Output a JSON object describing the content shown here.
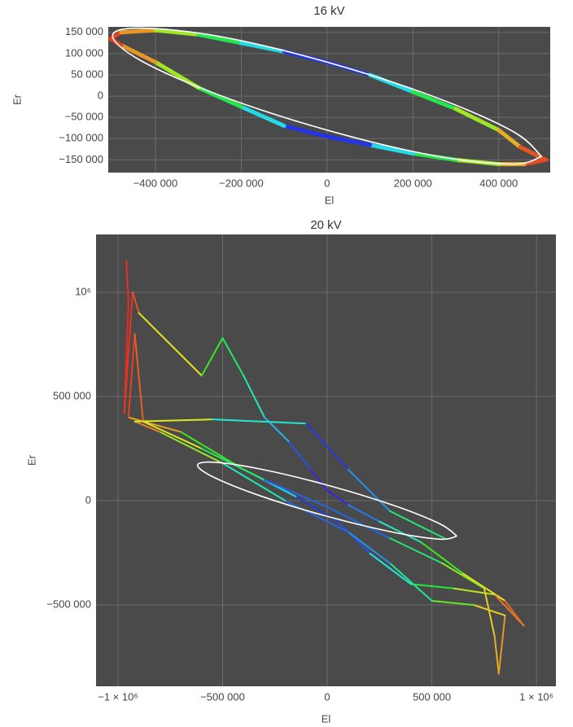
{
  "chart_data": [
    {
      "type": "line",
      "title": "16 kV",
      "x_label": "El",
      "y_label": "Er",
      "xlim": [
        -510000,
        520000
      ],
      "ylim": [
        -180000,
        163000
      ],
      "grid": true,
      "xticks": [
        {
          "value": -400000,
          "label": "−400 000"
        },
        {
          "value": -200000,
          "label": "−200 000"
        },
        0,
        {
          "value": 200000,
          "label": "200 000"
        },
        {
          "value": 400000,
          "label": "400 000"
        }
      ],
      "yticks": [
        {
          "value": 150000,
          "label": "150 000"
        },
        {
          "value": 100000,
          "label": "100 000"
        },
        {
          "value": 50000,
          "label": "50 000"
        },
        0,
        {
          "value": -50000,
          "label": "−50 000"
        },
        {
          "value": -100000,
          "label": "−100 000"
        },
        {
          "value": -150000,
          "label": "−150 000"
        }
      ],
      "series": [
        {
          "color": "rainbow",
          "x": [
            -505000,
            -480000,
            -400000,
            -300000,
            -200000,
            -100000,
            0,
            100000,
            200000,
            300000,
            400000,
            450000,
            510000,
            460000,
            400000,
            300000,
            200000,
            100000,
            0,
            -100000,
            -200000,
            -300000,
            -400000,
            -480000,
            -505000
          ],
          "values": [
            135000,
            150000,
            155000,
            145000,
            125000,
            105000,
            80000,
            50000,
            10000,
            -30000,
            -80000,
            -120000,
            -150000,
            -160000,
            -160000,
            -150000,
            -135000,
            -115000,
            -95000,
            -70000,
            -25000,
            20000,
            80000,
            120000,
            135000
          ]
        },
        {
          "color": "#ffffff",
          "x": [
            500000,
            433000,
            250000,
            0,
            -250000,
            -433000,
            -500000,
            -433000,
            -250000,
            0,
            250000,
            433000,
            500000
          ],
          "values": [
            -142000,
            -83000,
            -1700,
            80000,
            140300,
            160000,
            142000,
            83000,
            1700,
            -80000,
            -140300,
            -160000,
            -142000
          ]
        }
      ]
    },
    {
      "type": "line",
      "title": "20 kV",
      "x_label": "El",
      "y_label": "Er",
      "xlim": [
        -1105000,
        1093000
      ],
      "ylim": [
        -890000,
        1277000
      ],
      "grid": true,
      "xticks": [
        {
          "value": -1000000,
          "label": "−1 × 10⁶"
        },
        {
          "value": -500000,
          "label": "−500 000"
        },
        0,
        {
          "value": 500000,
          "label": "500 000"
        },
        {
          "value": 1000000,
          "label": "1 × 10⁶"
        }
      ],
      "yticks": [
        {
          "value": 1000000,
          "label": "10⁶"
        },
        {
          "value": 500000,
          "label": "500 000"
        },
        0,
        {
          "value": -500000,
          "label": "−500 000"
        }
      ],
      "series": [
        {
          "color": "rainbow",
          "x": [
            -960000,
            -950000,
            -970000,
            -930000,
            -900000,
            -600000,
            -500000,
            -400000,
            -300000,
            -180000,
            -80000,
            0,
            100000,
            250000,
            450000,
            650000,
            850000,
            940000,
            800000,
            600000,
            400000,
            200000,
            50000,
            -150000,
            -400000,
            -700000,
            -950000,
            -920000,
            -880000,
            -600000,
            -300000,
            0,
            300000,
            550000,
            750000,
            800000,
            820000,
            850000,
            700000,
            500000,
            300000,
            100000,
            -200000,
            -500000,
            -800000,
            -920000,
            -550000,
            -100000,
            100000,
            300000,
            560000
          ],
          "values": [
            1150000,
            950000,
            420000,
            1000000,
            900000,
            600000,
            780000,
            600000,
            400000,
            280000,
            150000,
            50000,
            -20000,
            -100000,
            -200000,
            -350000,
            -480000,
            -600000,
            -450000,
            -420000,
            -400000,
            -250000,
            -100000,
            20000,
            150000,
            330000,
            400000,
            800000,
            380000,
            250000,
            100000,
            -30000,
            -180000,
            -300000,
            -420000,
            -650000,
            -830000,
            -550000,
            -500000,
            -480000,
            -300000,
            -150000,
            0,
            180000,
            330000,
            380000,
            390000,
            370000,
            150000,
            -50000,
            -180000
          ]
        },
        {
          "color": "#ffffff",
          "x": [
            620000,
            537000,
            310000,
            0,
            -310000,
            -537000,
            -620000,
            -537000,
            -310000,
            0,
            310000,
            537000,
            620000
          ],
          "values": [
            -170000,
            -110000,
            -20000,
            75000,
            150000,
            184500,
            170000,
            110000,
            20000,
            -75000,
            -150000,
            -184500,
            -170000
          ]
        }
      ]
    }
  ]
}
